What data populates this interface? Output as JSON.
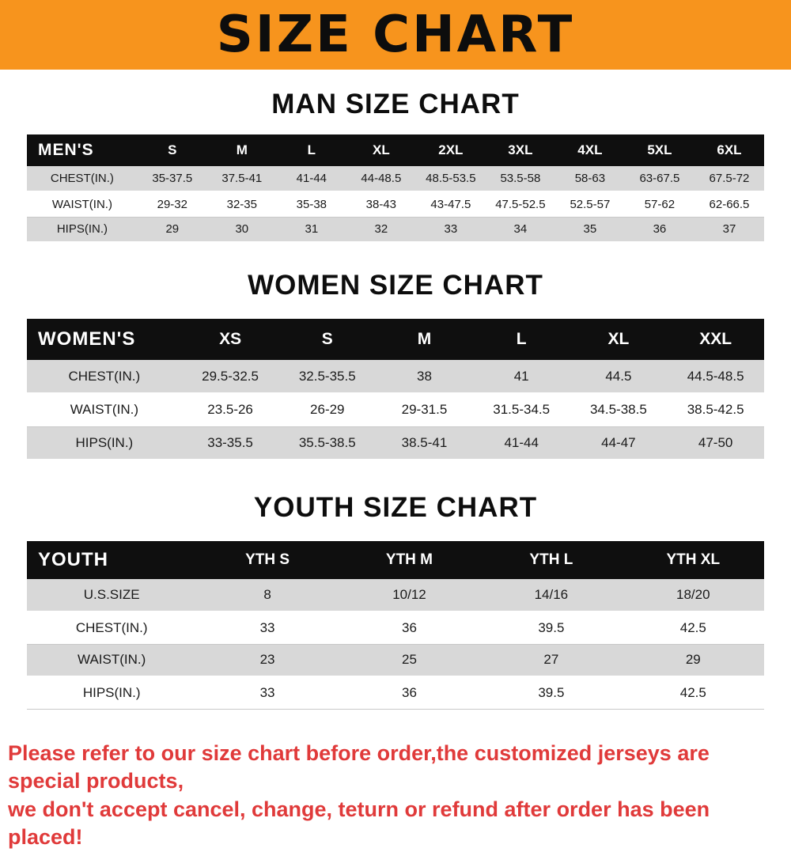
{
  "banner": {
    "title": "SIZE CHART",
    "bg_color": "#f7941d"
  },
  "sections": [
    {
      "heading": "MAN SIZE CHART",
      "table": {
        "header_label": "MEN'S",
        "columns": [
          "S",
          "M",
          "L",
          "XL",
          "2XL",
          "3XL",
          "4XL",
          "5XL",
          "6XL"
        ],
        "rows": [
          {
            "label": "CHEST(IN.)",
            "values": [
              "35-37.5",
              "37.5-41",
              "41-44",
              "44-48.5",
              "48.5-53.5",
              "53.5-58",
              "58-63",
              "63-67.5",
              "67.5-72"
            ]
          },
          {
            "label": "WAIST(IN.)",
            "values": [
              "29-32",
              "32-35",
              "35-38",
              "38-43",
              "43-47.5",
              "47.5-52.5",
              "52.5-57",
              "57-62",
              "62-66.5"
            ]
          },
          {
            "label": "HIPS(IN.)",
            "values": [
              "29",
              "30",
              "31",
              "32",
              "33",
              "34",
              "35",
              "36",
              "37"
            ]
          }
        ]
      }
    },
    {
      "heading": "WOMEN SIZE CHART",
      "table": {
        "header_label": "WOMEN'S",
        "columns": [
          "XS",
          "S",
          "M",
          "L",
          "XL",
          "XXL"
        ],
        "rows": [
          {
            "label": "CHEST(IN.)",
            "values": [
              "29.5-32.5",
              "32.5-35.5",
              "38",
              "41",
              "44.5",
              "44.5-48.5"
            ]
          },
          {
            "label": "WAIST(IN.)",
            "values": [
              "23.5-26",
              "26-29",
              "29-31.5",
              "31.5-34.5",
              "34.5-38.5",
              "38.5-42.5"
            ]
          },
          {
            "label": "HIPS(IN.)",
            "values": [
              "33-35.5",
              "35.5-38.5",
              "38.5-41",
              "41-44",
              "44-47",
              "47-50"
            ]
          }
        ]
      }
    },
    {
      "heading": "YOUTH SIZE CHART",
      "table": {
        "header_label": "YOUTH",
        "columns": [
          "YTH S",
          "YTH M",
          "YTH L",
          "YTH XL"
        ],
        "rows": [
          {
            "label": "U.S.SIZE",
            "values": [
              "8",
              "10/12",
              "14/16",
              "18/20"
            ]
          },
          {
            "label": "CHEST(IN.)",
            "values": [
              "33",
              "36",
              "39.5",
              "42.5"
            ]
          },
          {
            "label": "WAIST(IN.)",
            "values": [
              "23",
              "25",
              "27",
              "29"
            ]
          },
          {
            "label": "HIPS(IN.)",
            "values": [
              "33",
              "36",
              "39.5",
              "42.5"
            ]
          }
        ]
      }
    }
  ],
  "footer": {
    "text_color": "#e03a3a",
    "lines": [
      "Please refer to our size chart before order,the customized jerseys are special products,",
      "we don't accept cancel, change, teturn or refund after order has been placed!"
    ]
  }
}
